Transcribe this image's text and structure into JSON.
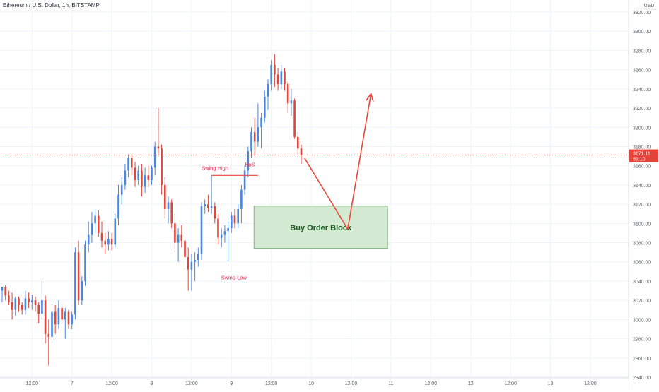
{
  "header": {
    "symbol_title": "Ethereum / U.S. Dollar, 1h, BITSTAMP",
    "currency": "USD"
  },
  "price_badge": {
    "price": "3171.11",
    "countdown": "59:10"
  },
  "colors": {
    "up": "#4a86e0",
    "down": "#e0463a",
    "arrow": "#e9473c",
    "annotation_text": "#e0234d",
    "zone_fill": "#d4ead2",
    "zone_border": "#6aa96a",
    "zone_text": "#1e5a22",
    "grid": "#f0f3fa",
    "axis_text": "#5c5f6b",
    "badge": "#e4433a"
  },
  "chart_data": {
    "type": "candlestick",
    "ylim": [
      2940,
      3325
    ],
    "y_ticks": [
      2940,
      2960,
      2980,
      3000,
      3020,
      3040,
      3060,
      3080,
      3100,
      3120,
      3140,
      3160,
      3180,
      3200,
      3220,
      3240,
      3260,
      3280,
      3300,
      3320
    ],
    "y_tick_labels": [
      "2940.00",
      "2960.00",
      "2980.00",
      "3000.00",
      "3020.00",
      "3040.00",
      "3060.00",
      "3080.00",
      "3100.00",
      "3120.00",
      "3140.00",
      "3160.00",
      "3180.00",
      "3200.00",
      "3220.00",
      "3240.00",
      "3260.00",
      "3280.00",
      "3300.00",
      "3320.00"
    ],
    "x_tick_labels": [
      "12:00",
      "7",
      "12:00",
      "8",
      "12:00",
      "9",
      "12:00",
      "10",
      "12:00",
      "11",
      "12:00",
      "12",
      "12:00",
      "13",
      "12:00"
    ],
    "x_tick_index": [
      9,
      21,
      33,
      45,
      57,
      69,
      81,
      93,
      105,
      117,
      129,
      141,
      153,
      165,
      177
    ],
    "candles": [
      {
        "o": 3030,
        "h": 3034,
        "l": 3018,
        "c": 3034
      },
      {
        "o": 3034,
        "h": 3036,
        "l": 3020,
        "c": 3025
      },
      {
        "o": 3025,
        "h": 3030,
        "l": 3015,
        "c": 3018
      },
      {
        "o": 3018,
        "h": 3028,
        "l": 3000,
        "c": 3010
      },
      {
        "o": 3010,
        "h": 3024,
        "l": 3004,
        "c": 3022
      },
      {
        "o": 3022,
        "h": 3024,
        "l": 3008,
        "c": 3015
      },
      {
        "o": 3015,
        "h": 3018,
        "l": 3005,
        "c": 3010
      },
      {
        "o": 3010,
        "h": 3030,
        "l": 3005,
        "c": 3022
      },
      {
        "o": 3022,
        "h": 3028,
        "l": 3012,
        "c": 3018
      },
      {
        "o": 3018,
        "h": 3026,
        "l": 3010,
        "c": 3020
      },
      {
        "o": 3020,
        "h": 3024,
        "l": 3008,
        "c": 3015
      },
      {
        "o": 3015,
        "h": 3018,
        "l": 2996,
        "c": 3006
      },
      {
        "o": 3006,
        "h": 3040,
        "l": 3000,
        "c": 3020
      },
      {
        "o": 3020,
        "h": 3025,
        "l": 2975,
        "c": 2985
      },
      {
        "o": 2985,
        "h": 3000,
        "l": 2952,
        "c": 2982
      },
      {
        "o": 2982,
        "h": 3016,
        "l": 2978,
        "c": 3008
      },
      {
        "o": 3008,
        "h": 3015,
        "l": 2985,
        "c": 2995
      },
      {
        "o": 2995,
        "h": 3020,
        "l": 2990,
        "c": 3012
      },
      {
        "o": 3012,
        "h": 3016,
        "l": 2995,
        "c": 3000
      },
      {
        "o": 3000,
        "h": 3012,
        "l": 2980,
        "c": 3008
      },
      {
        "o": 3008,
        "h": 3010,
        "l": 2990,
        "c": 2995
      },
      {
        "o": 2995,
        "h": 3008,
        "l": 2990,
        "c": 3005
      },
      {
        "o": 3005,
        "h": 3075,
        "l": 3000,
        "c": 3070
      },
      {
        "o": 3070,
        "h": 3082,
        "l": 3015,
        "c": 3020
      },
      {
        "o": 3020,
        "h": 3045,
        "l": 3015,
        "c": 3040
      },
      {
        "o": 3040,
        "h": 3082,
        "l": 3035,
        "c": 3078
      },
      {
        "o": 3078,
        "h": 3102,
        "l": 3070,
        "c": 3088
      },
      {
        "o": 3088,
        "h": 3112,
        "l": 3080,
        "c": 3100
      },
      {
        "o": 3100,
        "h": 3115,
        "l": 3090,
        "c": 3108
      },
      {
        "o": 3108,
        "h": 3114,
        "l": 3086,
        "c": 3090
      },
      {
        "o": 3090,
        "h": 3102,
        "l": 3075,
        "c": 3082
      },
      {
        "o": 3082,
        "h": 3090,
        "l": 3068,
        "c": 3078
      },
      {
        "o": 3078,
        "h": 3092,
        "l": 3072,
        "c": 3084
      },
      {
        "o": 3084,
        "h": 3090,
        "l": 3072,
        "c": 3078
      },
      {
        "o": 3078,
        "h": 3110,
        "l": 3075,
        "c": 3105
      },
      {
        "o": 3105,
        "h": 3140,
        "l": 3098,
        "c": 3130
      },
      {
        "o": 3130,
        "h": 3148,
        "l": 3120,
        "c": 3140
      },
      {
        "o": 3140,
        "h": 3162,
        "l": 3135,
        "c": 3155
      },
      {
        "o": 3155,
        "h": 3172,
        "l": 3148,
        "c": 3168
      },
      {
        "o": 3168,
        "h": 3172,
        "l": 3150,
        "c": 3158
      },
      {
        "o": 3158,
        "h": 3164,
        "l": 3138,
        "c": 3145
      },
      {
        "o": 3145,
        "h": 3160,
        "l": 3140,
        "c": 3155
      },
      {
        "o": 3155,
        "h": 3162,
        "l": 3128,
        "c": 3138
      },
      {
        "o": 3138,
        "h": 3158,
        "l": 3132,
        "c": 3150
      },
      {
        "o": 3150,
        "h": 3160,
        "l": 3138,
        "c": 3145
      },
      {
        "o": 3145,
        "h": 3160,
        "l": 3140,
        "c": 3158
      },
      {
        "o": 3158,
        "h": 3185,
        "l": 3150,
        "c": 3180
      },
      {
        "o": 3180,
        "h": 3220,
        "l": 3170,
        "c": 3178
      },
      {
        "o": 3178,
        "h": 3182,
        "l": 3130,
        "c": 3140
      },
      {
        "o": 3140,
        "h": 3148,
        "l": 3105,
        "c": 3115
      },
      {
        "o": 3115,
        "h": 3128,
        "l": 3100,
        "c": 3122
      },
      {
        "o": 3122,
        "h": 3125,
        "l": 3095,
        "c": 3100
      },
      {
        "o": 3100,
        "h": 3110,
        "l": 3070,
        "c": 3080
      },
      {
        "o": 3080,
        "h": 3095,
        "l": 3060,
        "c": 3088
      },
      {
        "o": 3088,
        "h": 3098,
        "l": 3075,
        "c": 3082
      },
      {
        "o": 3082,
        "h": 3090,
        "l": 3055,
        "c": 3065
      },
      {
        "o": 3065,
        "h": 3075,
        "l": 3030,
        "c": 3052
      },
      {
        "o": 3052,
        "h": 3068,
        "l": 3030,
        "c": 3060
      },
      {
        "o": 3060,
        "h": 3070,
        "l": 3040,
        "c": 3062
      },
      {
        "o": 3062,
        "h": 3075,
        "l": 3055,
        "c": 3068
      },
      {
        "o": 3068,
        "h": 3122,
        "l": 3062,
        "c": 3118
      },
      {
        "o": 3118,
        "h": 3125,
        "l": 3110,
        "c": 3120
      },
      {
        "o": 3120,
        "h": 3130,
        "l": 3112,
        "c": 3116
      },
      {
        "o": 3116,
        "h": 3150,
        "l": 3110,
        "c": 3118
      },
      {
        "o": 3118,
        "h": 3122,
        "l": 3100,
        "c": 3105
      },
      {
        "o": 3105,
        "h": 3110,
        "l": 3078,
        "c": 3085
      },
      {
        "o": 3085,
        "h": 3095,
        "l": 3075,
        "c": 3088
      },
      {
        "o": 3088,
        "h": 3098,
        "l": 3080,
        "c": 3092
      },
      {
        "o": 3092,
        "h": 3102,
        "l": 3060,
        "c": 3095
      },
      {
        "o": 3095,
        "h": 3112,
        "l": 3090,
        "c": 3108
      },
      {
        "o": 3108,
        "h": 3115,
        "l": 3095,
        "c": 3100
      },
      {
        "o": 3100,
        "h": 3120,
        "l": 3095,
        "c": 3115
      },
      {
        "o": 3115,
        "h": 3140,
        "l": 3100,
        "c": 3135
      },
      {
        "o": 3135,
        "h": 3160,
        "l": 3130,
        "c": 3155
      },
      {
        "o": 3155,
        "h": 3180,
        "l": 3148,
        "c": 3175
      },
      {
        "o": 3175,
        "h": 3200,
        "l": 3168,
        "c": 3195
      },
      {
        "o": 3195,
        "h": 3210,
        "l": 3170,
        "c": 3185
      },
      {
        "o": 3185,
        "h": 3225,
        "l": 3180,
        "c": 3200
      },
      {
        "o": 3200,
        "h": 3215,
        "l": 3178,
        "c": 3210
      },
      {
        "o": 3210,
        "h": 3238,
        "l": 3205,
        "c": 3232
      },
      {
        "o": 3232,
        "h": 3250,
        "l": 3218,
        "c": 3245
      },
      {
        "o": 3245,
        "h": 3270,
        "l": 3238,
        "c": 3265
      },
      {
        "o": 3265,
        "h": 3276,
        "l": 3242,
        "c": 3255
      },
      {
        "o": 3255,
        "h": 3262,
        "l": 3238,
        "c": 3245
      },
      {
        "o": 3245,
        "h": 3265,
        "l": 3240,
        "c": 3258
      },
      {
        "o": 3258,
        "h": 3262,
        "l": 3238,
        "c": 3245
      },
      {
        "o": 3245,
        "h": 3248,
        "l": 3215,
        "c": 3225
      },
      {
        "o": 3225,
        "h": 3240,
        "l": 3212,
        "c": 3228
      },
      {
        "o": 3228,
        "h": 3230,
        "l": 3188,
        "c": 3190
      },
      {
        "o": 3190,
        "h": 3195,
        "l": 3172,
        "c": 3178
      },
      {
        "o": 3178,
        "h": 3182,
        "l": 3162,
        "c": 3171
      }
    ],
    "annotations": {
      "swing_high": {
        "label": "Swing High",
        "index": 63,
        "price": 3150
      },
      "bos": {
        "label": "BoS",
        "index": 72,
        "price": 3152
      },
      "swing_low": {
        "label": "Swing Low",
        "index": 68,
        "price": 3060
      },
      "bos_line": {
        "start_index": 63,
        "end_index": 77,
        "price": 3150
      },
      "order_block": {
        "label": "Buy Order Block",
        "start_index": 76,
        "end_index": 116,
        "top": 3118,
        "bottom": 3074
      },
      "projection": {
        "points": [
          {
            "index": 91,
            "price": 3168
          },
          {
            "index": 104,
            "price": 3094
          },
          {
            "index": 111,
            "price": 3235
          }
        ]
      },
      "current_price_line": 3171.11
    }
  }
}
